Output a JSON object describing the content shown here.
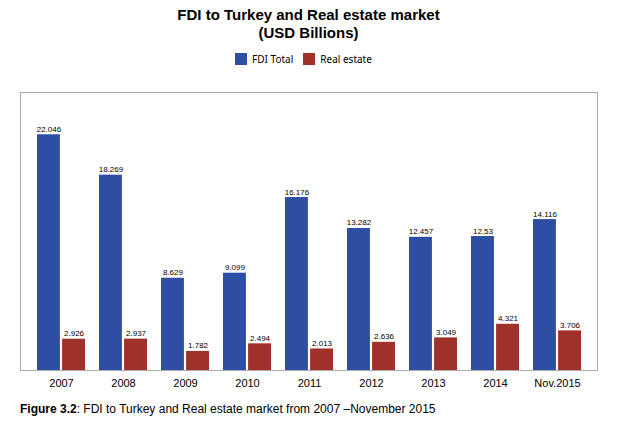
{
  "chart_data": {
    "type": "bar",
    "title": "FDI to Turkey and Real estate market\n(USD Billions)",
    "caption": [
      "Figure 3.2",
      ": FDI to Turkey and Real estate market from 2007 –November 2015"
    ],
    "categories": [
      "2007",
      "2008",
      "2009",
      "2010",
      "2011",
      "2012",
      "2013",
      "2014",
      "Nov.2015"
    ],
    "series": [
      {
        "name": "FDI Total",
        "color": "#2E4EA3",
        "values": [
          22.046,
          18.269,
          8.629,
          9.099,
          16.176,
          13.282,
          12.457,
          12.53,
          14.116
        ]
      },
      {
        "name": "Real estate",
        "color": "#A0312A",
        "values": [
          2.926,
          2.937,
          1.782,
          2.494,
          2.013,
          2.636,
          3.049,
          4.321,
          3.706
        ]
      }
    ],
    "ylim": [
      0,
      26
    ],
    "tick_labels": "x",
    "data_labels": true,
    "grid": false,
    "legend": "top"
  }
}
